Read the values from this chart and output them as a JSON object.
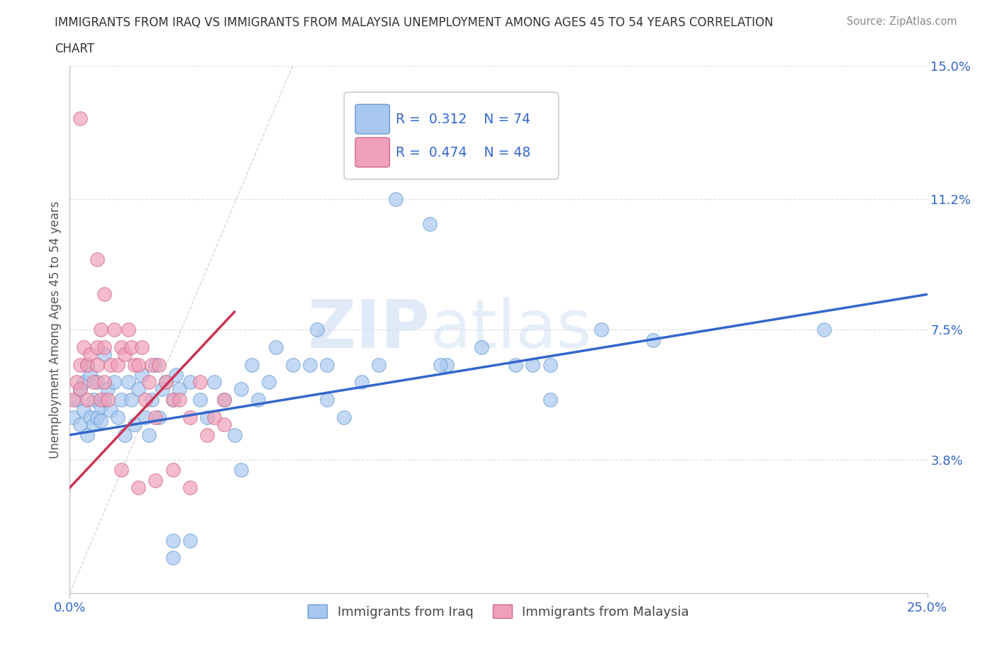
{
  "title_line1": "IMMIGRANTS FROM IRAQ VS IMMIGRANTS FROM MALAYSIA UNEMPLOYMENT AMONG AGES 45 TO 54 YEARS CORRELATION",
  "title_line2": "CHART",
  "source_text": "Source: ZipAtlas.com",
  "ylabel": "Unemployment Among Ages 45 to 54 years",
  "xlim": [
    0.0,
    25.0
  ],
  "ylim": [
    0.0,
    15.0
  ],
  "xtick_positions": [
    0.0,
    25.0
  ],
  "xticklabels": [
    "0.0%",
    "25.0%"
  ],
  "yticks_right": [
    3.8,
    7.5,
    11.2,
    15.0
  ],
  "yticklabels_right": [
    "3.8%",
    "7.5%",
    "11.2%",
    "15.0%"
  ],
  "iraq_color": "#a8c8f0",
  "iraq_edge_color": "#6699cc",
  "malaysia_color": "#f0a0b8",
  "malaysia_edge_color": "#cc6688",
  "iraq_trend_color": "#3366cc",
  "malaysia_trend_color": "#cc3355",
  "iraq_R": 0.312,
  "iraq_N": 74,
  "malaysia_R": 0.474,
  "malaysia_N": 48,
  "legend_label_iraq": "Immigrants from Iraq",
  "legend_label_malaysia": "Immigrants from Malaysia",
  "watermark_zip": "ZIP",
  "watermark_atlas": "atlas",
  "background_color": "#ffffff",
  "diag_line_color": "#cccccc",
  "grid_color": "#e0e0e0",
  "grid_style": "--",
  "right_tick_color": "#3366cc",
  "title_color": "#333333",
  "source_color": "#888888",
  "ylabel_color": "#555555",
  "iraq_trend_x0": 0.0,
  "iraq_trend_y0": 4.5,
  "iraq_trend_x1": 25.0,
  "iraq_trend_y1": 8.5,
  "malaysia_trend_x0": 0.0,
  "malaysia_trend_y0": 3.0,
  "malaysia_trend_x1": 4.8,
  "malaysia_trend_y1": 8.0,
  "diag_x0": 0.0,
  "diag_y0": 0.0,
  "diag_x1": 6.5,
  "diag_y1": 15.0
}
